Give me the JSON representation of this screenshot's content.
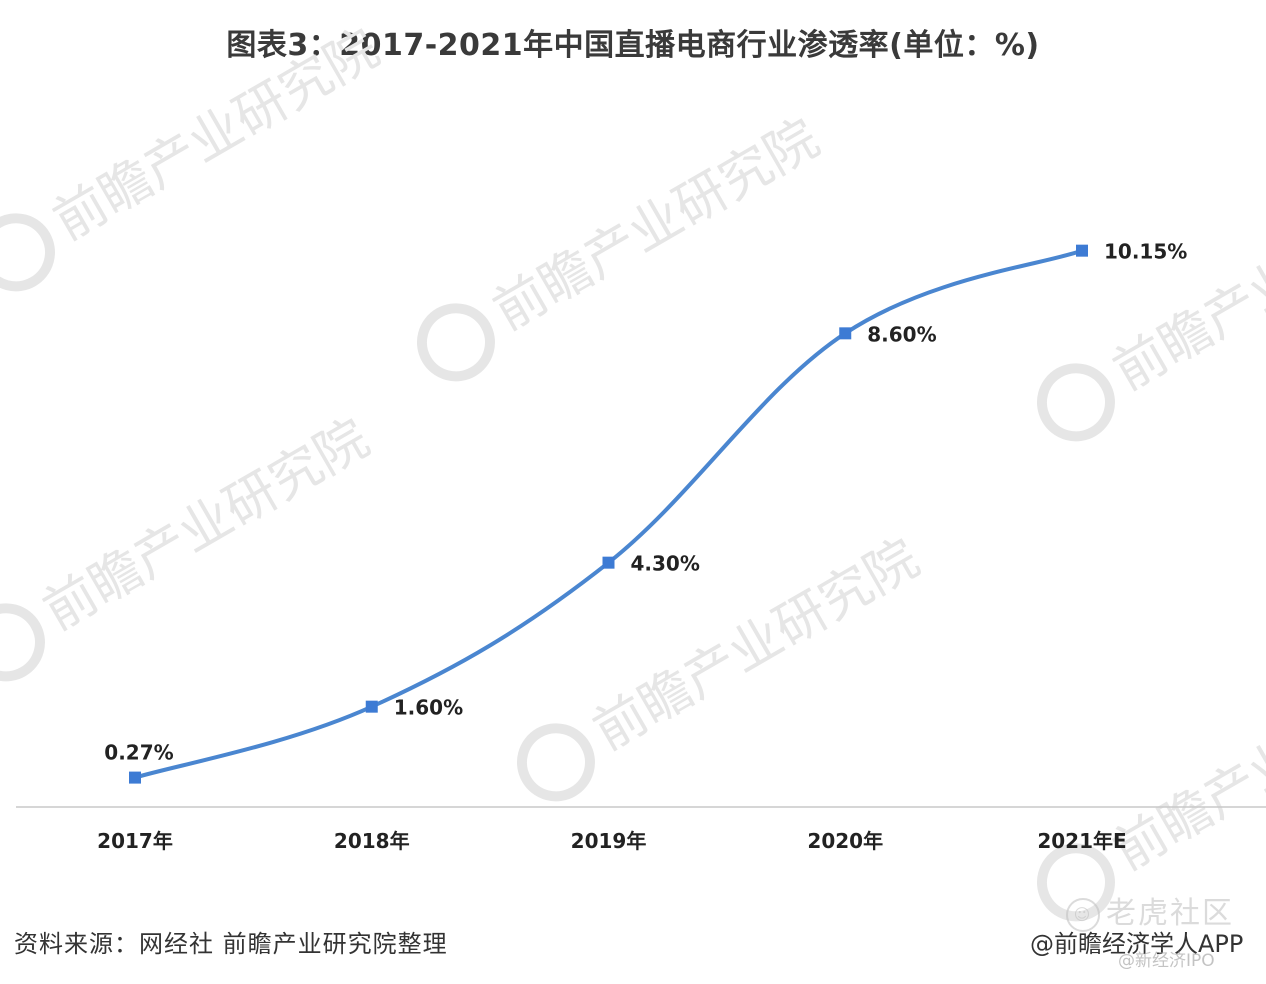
{
  "chart_data": {
    "type": "line",
    "title": "图表3：2017-2021年中国直播电商行业渗透率(单位：%)",
    "categories": [
      "2017年",
      "2018年",
      "2019年",
      "2020年",
      "2021年E"
    ],
    "series": [
      {
        "values": [
          0.27,
          1.6,
          4.3,
          8.6,
          10.15
        ],
        "labels": [
          "0.27%",
          "1.60%",
          "4.30%",
          "8.60%",
          "10.15%"
        ]
      }
    ],
    "ylim": [
      0,
      11
    ],
    "grid": false,
    "legend": "none",
    "line_color": "#4a86d0",
    "marker_color": "#3d7bd4"
  },
  "source": "资料来源：网经社 前瞻产业研究院整理",
  "credit": "@前瞻经济学人APP",
  "watermarks": {
    "brand": "前瞻产业研究院",
    "community": "老虎社区",
    "handle": "@新经济IPO"
  },
  "colors": {
    "title": "#3a3a3a",
    "axis": "#c8c8c8",
    "watermark": "#e6e6e6"
  }
}
